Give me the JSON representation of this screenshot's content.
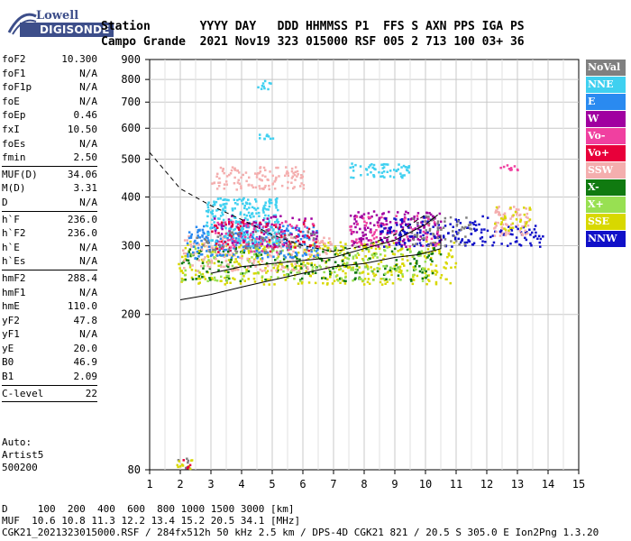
{
  "logo": {
    "line1": "Lowell",
    "line2": "DIGISONDE"
  },
  "header": {
    "row1": "Station       YYYY DAY   DDD HHMMSS P1  FFS S AXN PPS IGA PS",
    "row2": "Campo Grande  2021 Nov19 323 015000 RSF 005 2 713 100 03+ 36"
  },
  "params": [
    {
      "k": "foF2",
      "v": "10.300"
    },
    {
      "k": "foF1",
      "v": "N/A"
    },
    {
      "k": "foF1p",
      "v": "N/A"
    },
    {
      "k": "foE",
      "v": "N/A"
    },
    {
      "k": "foEp",
      "v": "0.46"
    },
    {
      "k": "fxI",
      "v": "10.50"
    },
    {
      "k": "foEs",
      "v": "N/A"
    },
    {
      "k": "fmin",
      "v": "2.50"
    },
    {
      "sep": true
    },
    {
      "k": "MUF(D)",
      "v": "34.06"
    },
    {
      "k": "M(D)",
      "v": "3.31"
    },
    {
      "k": "D",
      "v": "N/A"
    },
    {
      "sep": true
    },
    {
      "k": "h`F",
      "v": "236.0"
    },
    {
      "k": "h`F2",
      "v": "236.0"
    },
    {
      "k": "h`E",
      "v": "N/A"
    },
    {
      "k": "h`Es",
      "v": "N/A"
    },
    {
      "sep": true
    },
    {
      "k": "hmF2",
      "v": "288.4"
    },
    {
      "k": "hmF1",
      "v": "N/A"
    },
    {
      "k": "hmE",
      "v": "110.0"
    },
    {
      "k": "yF2",
      "v": "47.8"
    },
    {
      "k": "yF1",
      "v": "N/A"
    },
    {
      "k": "yE",
      "v": "20.0"
    },
    {
      "k": "B0",
      "v": "46.9"
    },
    {
      "k": "B1",
      "v": "2.09"
    },
    {
      "sep": true
    },
    {
      "k": "C-level",
      "v": "22"
    },
    {
      "sep": true
    }
  ],
  "auto": {
    "line1": "Auto:",
    "line2": "Artist5",
    "line3": "500200"
  },
  "legend": [
    {
      "label": "NoVal",
      "color": "#808080"
    },
    {
      "label": "NNE",
      "color": "#3fd0f0"
    },
    {
      "label": "E",
      "color": "#2a8af0"
    },
    {
      "label": "W",
      "color": "#a000a0"
    },
    {
      "label": "Vo-",
      "color": "#f040a0"
    },
    {
      "label": "Vo+",
      "color": "#e8003a"
    },
    {
      "label": "SSW",
      "color": "#f4aeae"
    },
    {
      "label": "X-",
      "color": "#107a10"
    },
    {
      "label": "X+",
      "color": "#98e052"
    },
    {
      "label": "SSE",
      "color": "#d8d800"
    },
    {
      "label": "NNW",
      "color": "#1010c8"
    }
  ],
  "footer": {
    "line1": "D     100  200  400  600  800 1000 1500 3000 [km]",
    "line2": "MUF  10.6 10.8 11.3 12.2 13.4 15.2 20.5 34.1 [MHz]",
    "line3": "CGK21_2021323015000.RSF / 284fx512h 50 kHz 2.5 km / DPS-4D CGK21 821 / 20.5 S 305.0 E Ion2Png 1.3.20"
  },
  "chart_data": {
    "type": "scatter",
    "xlim": [
      1,
      15
    ],
    "ylim": [
      80,
      900
    ],
    "y_scale": "log",
    "x_ticks": [
      1,
      2,
      3,
      4,
      5,
      6,
      7,
      8,
      9,
      10,
      11,
      12,
      13,
      14,
      15
    ],
    "y_ticks": [
      80,
      200,
      300,
      400,
      500,
      600,
      700,
      800,
      900
    ],
    "grid": true,
    "legend_position": "right",
    "clusters": [
      {
        "x": [
          1.8,
          2.4
        ],
        "y": [
          80,
          86
        ],
        "color": "#808080",
        "n": 8
      },
      {
        "x": [
          1.8,
          2.4
        ],
        "y": [
          80,
          86
        ],
        "color": "#d8d800",
        "n": 10
      },
      {
        "x": [
          1.9,
          2.3
        ],
        "y": [
          80,
          86
        ],
        "color": "#e8003a",
        "n": 4
      },
      {
        "x": [
          1.9,
          11.0
        ],
        "y": [
          240,
          310
        ],
        "color": "#d8d800",
        "n": 420
      },
      {
        "x": [
          2.0,
          10.5
        ],
        "y": [
          245,
          300
        ],
        "color": "#107a10",
        "n": 180
      },
      {
        "x": [
          2.0,
          10.0
        ],
        "y": [
          245,
          300
        ],
        "color": "#98e052",
        "n": 160
      },
      {
        "x": [
          2.0,
          7.0
        ],
        "y": [
          260,
          320
        ],
        "color": "#f4aeae",
        "n": 160
      },
      {
        "x": [
          2.2,
          6.5
        ],
        "y": [
          280,
          340
        ],
        "color": "#2a8af0",
        "n": 220
      },
      {
        "x": [
          2.8,
          5.2
        ],
        "y": [
          300,
          400
        ],
        "color": "#3fd0f0",
        "n": 260
      },
      {
        "x": [
          3.0,
          6.5
        ],
        "y": [
          300,
          360
        ],
        "color": "#a000a0",
        "n": 90
      },
      {
        "x": [
          3.0,
          6.5
        ],
        "y": [
          290,
          350
        ],
        "color": "#e8003a",
        "n": 70
      },
      {
        "x": [
          3.0,
          6.5
        ],
        "y": [
          290,
          350
        ],
        "color": "#f040a0",
        "n": 60
      },
      {
        "x": [
          2.5,
          6.5
        ],
        "y": [
          290,
          330
        ],
        "color": "#808080",
        "n": 60
      },
      {
        "x": [
          3.0,
          6.0
        ],
        "y": [
          420,
          480
        ],
        "color": "#f4aeae",
        "n": 120
      },
      {
        "x": [
          7.5,
          10.5
        ],
        "y": [
          300,
          370
        ],
        "color": "#a000a0",
        "n": 170
      },
      {
        "x": [
          7.5,
          10.5
        ],
        "y": [
          300,
          360
        ],
        "color": "#f040a0",
        "n": 80
      },
      {
        "x": [
          8.5,
          12.0
        ],
        "y": [
          300,
          360
        ],
        "color": "#1010c8",
        "n": 130
      },
      {
        "x": [
          9.5,
          11.5
        ],
        "y": [
          300,
          360
        ],
        "color": "#808080",
        "n": 60
      },
      {
        "x": [
          12.0,
          13.8
        ],
        "y": [
          300,
          340
        ],
        "color": "#1010c8",
        "n": 50
      },
      {
        "x": [
          12.2,
          13.4
        ],
        "y": [
          320,
          380
        ],
        "color": "#f4aeae",
        "n": 70
      },
      {
        "x": [
          12.2,
          13.4
        ],
        "y": [
          330,
          380
        ],
        "color": "#d8d800",
        "n": 30
      },
      {
        "x": [
          7.5,
          9.5
        ],
        "y": [
          450,
          490
        ],
        "color": "#3fd0f0",
        "n": 60
      },
      {
        "x": [
          4.5,
          5.0
        ],
        "y": [
          760,
          800
        ],
        "color": "#3fd0f0",
        "n": 10
      },
      {
        "x": [
          4.5,
          5.0
        ],
        "y": [
          560,
          590
        ],
        "color": "#3fd0f0",
        "n": 10
      },
      {
        "x": [
          12.4,
          13.0
        ],
        "y": [
          470,
          485
        ],
        "color": "#f040a0",
        "n": 10
      }
    ],
    "curves": [
      {
        "name": "dashed",
        "style": "dashed",
        "x": [
          1,
          2,
          3,
          4,
          5,
          6,
          7,
          8,
          9,
          10
        ],
        "y": [
          520,
          420,
          380,
          350,
          320,
          300,
          290,
          300,
          320,
          360
        ]
      },
      {
        "name": "solid-lower",
        "style": "solid",
        "x": [
          2,
          3,
          4,
          5,
          6,
          7,
          8,
          9,
          9.8,
          10.5,
          10.5
        ],
        "y": [
          218,
          225,
          235,
          245,
          255,
          265,
          270,
          280,
          285,
          295,
          320
        ]
      },
      {
        "name": "solid-upper",
        "style": "solid",
        "x": [
          3,
          4,
          5,
          6,
          7,
          8,
          9,
          10,
          10.4
        ],
        "y": [
          255,
          265,
          270,
          275,
          280,
          295,
          310,
          340,
          360
        ]
      }
    ]
  }
}
